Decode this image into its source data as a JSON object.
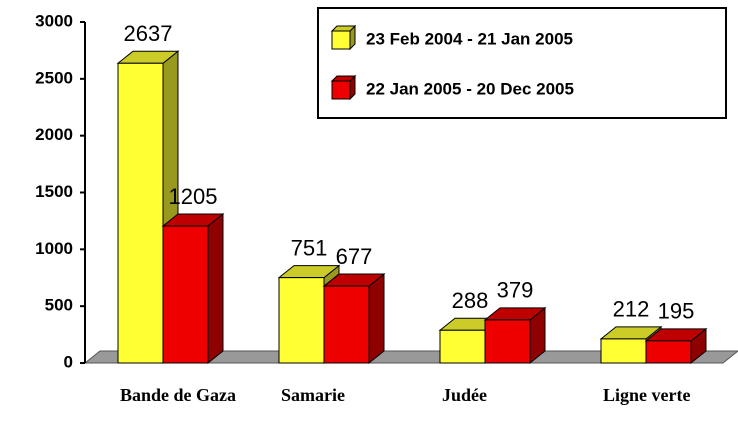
{
  "chart_data": {
    "type": "bar",
    "categories": [
      "Bande de Gaza",
      "Samarie",
      "Judée",
      "Ligne verte"
    ],
    "series": [
      {
        "name": "23 Feb 2004 - 21 Jan 2005",
        "color": "#ffff33",
        "values": [
          2637,
          751,
          288,
          212
        ]
      },
      {
        "name": "22 Jan 2005 - 20 Dec 2005",
        "color": "#ee0000",
        "values": [
          1205,
          677,
          379,
          195
        ]
      }
    ],
    "ylim": [
      0,
      3000
    ],
    "yticks": [
      0,
      500,
      1000,
      1500,
      2000,
      2500,
      3000
    ],
    "legend": "top-right",
    "grid": false
  }
}
